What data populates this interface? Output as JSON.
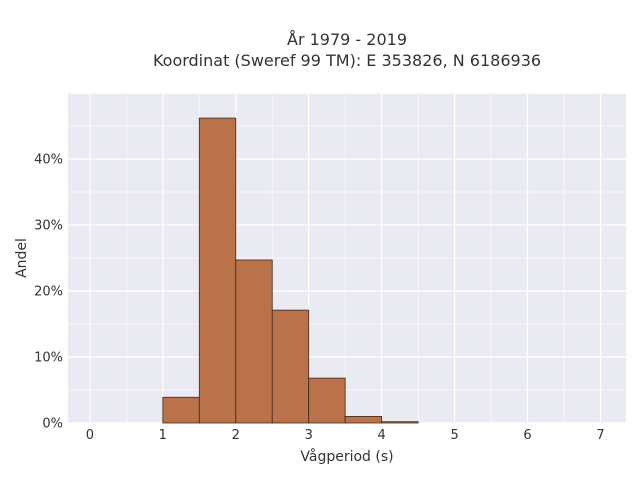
{
  "chart_data": {
    "type": "bar",
    "title_lines": [
      "År 1979 - 2019",
      "Koordinat (Sweref 99 TM): E 353826, N 6186936"
    ],
    "xlabel": "Vågperiod (s)",
    "ylabel": "Andel",
    "xlim": [
      -0.3,
      7.35
    ],
    "ylim": [
      0,
      0.5
    ],
    "x_ticks": [
      0,
      1,
      2,
      3,
      4,
      5,
      6,
      7
    ],
    "y_ticks": [
      0,
      0.1,
      0.2,
      0.3,
      0.4
    ],
    "y_tick_labels": [
      "0%",
      "10%",
      "20%",
      "30%",
      "40%"
    ],
    "bin_width": 0.5,
    "series": [
      {
        "bins": [
          {
            "start": 1.0,
            "value": 0.039
          },
          {
            "start": 1.5,
            "value": 0.462
          },
          {
            "start": 2.0,
            "value": 0.247
          },
          {
            "start": 2.5,
            "value": 0.171
          },
          {
            "start": 3.0,
            "value": 0.068
          },
          {
            "start": 3.5,
            "value": 0.01
          },
          {
            "start": 4.0,
            "value": 0.002
          }
        ]
      }
    ],
    "grid": true,
    "colors": {
      "plot_background": "#eaeaf2",
      "grid": "#ffffff",
      "bar_fill": "#b9724a",
      "bar_edge": "#3d2a1f"
    }
  }
}
